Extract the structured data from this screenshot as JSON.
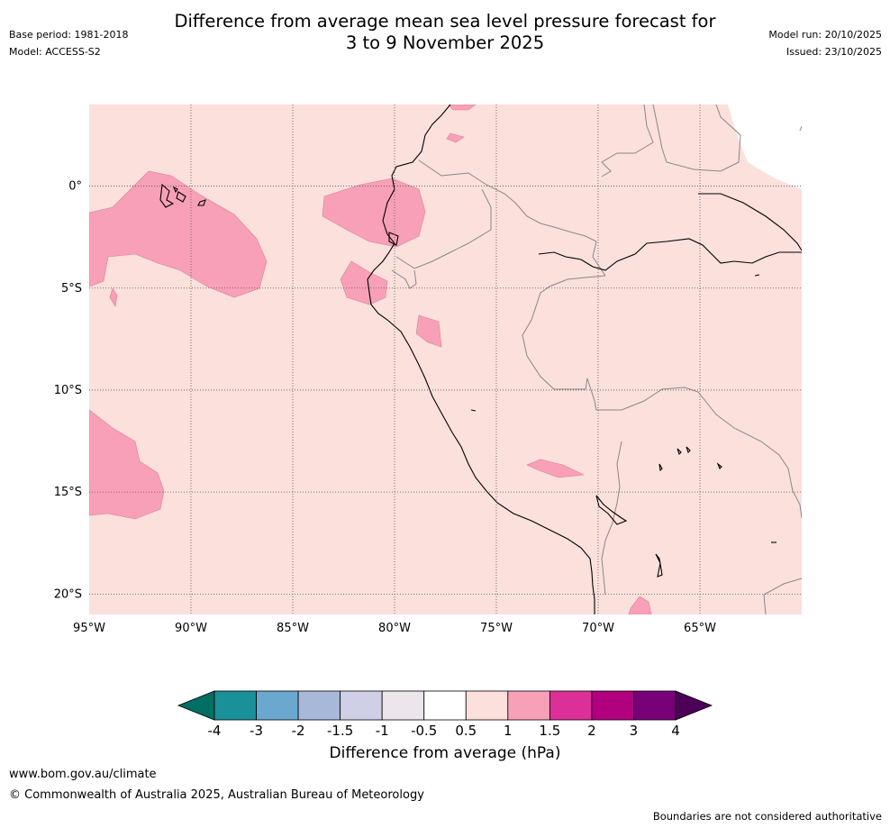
{
  "header": {
    "title_line1": "Difference from average mean sea level pressure forecast for",
    "title_line2": "3 to 9 November 2025",
    "base_period": "Base period: 1981-2018",
    "model": "Model: ACCESS-S2",
    "model_run": "Model run: 20/10/2025",
    "issued": "Issued: 23/10/2025"
  },
  "map": {
    "lat_labels": [
      "0°",
      "5°S",
      "10°S",
      "15°S",
      "20°S"
    ],
    "lon_labels": [
      "95°W",
      "90°W",
      "85°W",
      "80°W",
      "75°W",
      "70°W",
      "65°W"
    ],
    "lat_values": [
      0,
      -5,
      -10,
      -15,
      -20
    ],
    "lon_values": [
      -95,
      -90,
      -85,
      -80,
      -75,
      -70,
      -65
    ],
    "extent": {
      "lon_min": -95,
      "lon_max": -60,
      "lat_min": -21,
      "lat_max": 4
    },
    "background_category": "0.5 to 1",
    "patch_category": "1 to 1.5"
  },
  "colorbar": {
    "ticks": [
      "-4",
      "-3",
      "-2",
      "-1.5",
      "-1",
      "-0.5",
      "0.5",
      "1",
      "1.5",
      "2",
      "3",
      "4"
    ],
    "colors": [
      "#1a9098",
      "#6aa8d0",
      "#a8b8d8",
      "#cfd0e5",
      "#ece6ec",
      "#ffffff",
      "#fbe0dc",
      "#f8a0b8",
      "#dc3098",
      "#b00080",
      "#780078"
    ],
    "under_color": "#006e62",
    "over_color": "#4c0058",
    "label": "Difference from average (hPa)"
  },
  "footer": {
    "url": "www.bom.gov.au/climate",
    "copyright": "© Commonwealth of Australia 2025, Australian Bureau of Meteorology",
    "disclaimer": "Boundaries are not considered authoritative"
  }
}
